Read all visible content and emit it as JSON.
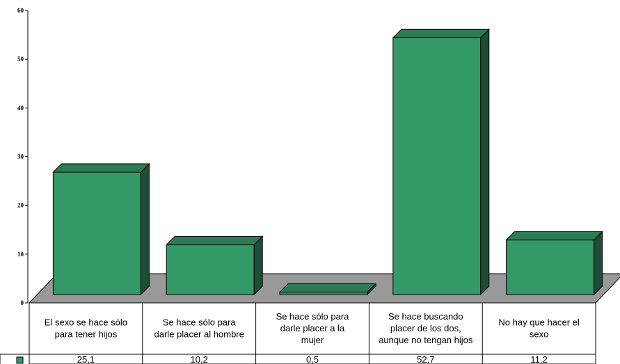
{
  "chart_data": {
    "type": "bar",
    "style": "3d-bar-with-data-table",
    "categories": [
      "El sexo se hace sólo para tener hijos",
      "Se hace sólo para darle placer al hombre",
      "Se hace sólo para darle placer a la mujer",
      "Se hace buscando placer de los dos, aunque no tengan hijos",
      "No hay que hacer el sexo"
    ],
    "value_labels": [
      "25,1",
      "10,2",
      "0,5",
      "52,7",
      "11,2"
    ],
    "series": [
      {
        "values": [
          25.1,
          10.2,
          0.5,
          52.7,
          11.2
        ]
      }
    ],
    "yticks": [
      "0",
      "10",
      "20",
      "30",
      "40",
      "50",
      "60"
    ],
    "ylim": [
      0,
      60
    ],
    "title": "",
    "xlabel": "",
    "ylabel": "",
    "grid": false,
    "legend": "none",
    "colors": {
      "bar_front": "#339966",
      "bar_side": "#1f4d3a",
      "bar_top": "#2d7a55",
      "floor": "#999999",
      "legend_key": "#339966"
    }
  }
}
